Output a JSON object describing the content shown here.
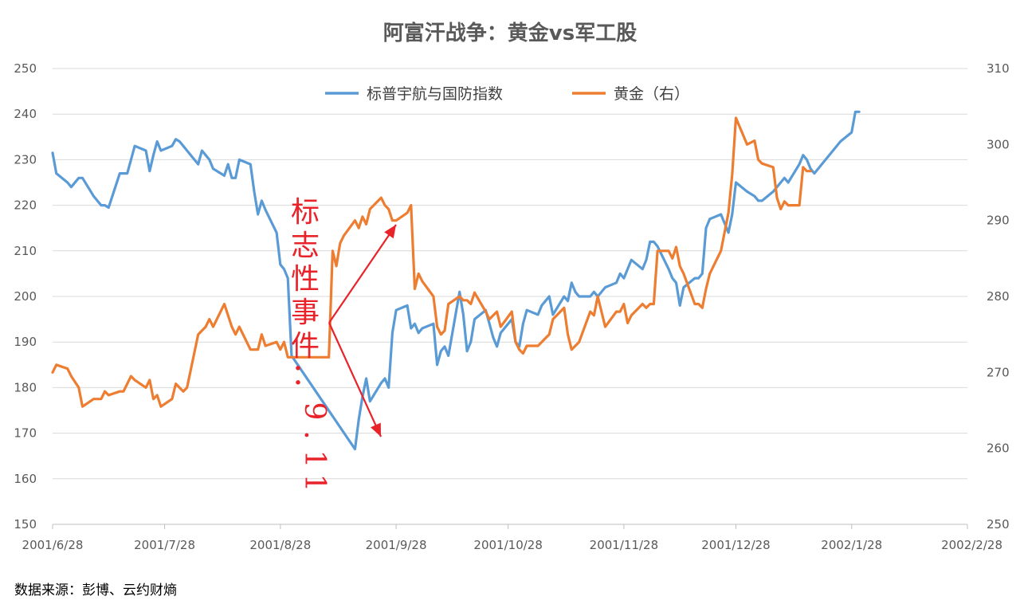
{
  "chart_data": {
    "type": "line",
    "title": "阿富汗战争：黄金vs军工股",
    "legend_position": "top-center",
    "grid": true,
    "x_tick_labels": [
      "2001/6/28",
      "2001/7/28",
      "2001/8/28",
      "2001/9/28",
      "2001/10/28",
      "2001/11/28",
      "2001/12/28",
      "2002/1/28",
      "2002/2/28"
    ],
    "y_left": {
      "min": 150,
      "max": 250,
      "ticks": [
        150,
        160,
        170,
        180,
        190,
        200,
        210,
        220,
        230,
        240,
        250
      ]
    },
    "y_right": {
      "min": 250,
      "max": 310,
      "ticks": [
        250,
        260,
        270,
        280,
        290,
        300,
        310
      ]
    },
    "series": [
      {
        "name": "标普宇航与国防指数",
        "axis": "left",
        "color": "#5b9bd5",
        "values": [
          [
            "2001-06-28",
            231.5
          ],
          [
            "2001-06-29",
            227
          ],
          [
            "2001-07-02",
            225
          ],
          [
            "2001-07-03",
            224
          ],
          [
            "2001-07-05",
            226
          ],
          [
            "2001-07-06",
            226
          ],
          [
            "2001-07-09",
            222
          ],
          [
            "2001-07-10",
            221
          ],
          [
            "2001-07-11",
            220
          ],
          [
            "2001-07-12",
            220
          ],
          [
            "2001-07-13",
            219.5
          ],
          [
            "2001-07-16",
            227
          ],
          [
            "2001-07-17",
            227
          ],
          [
            "2001-07-18",
            227
          ],
          [
            "2001-07-19",
            230
          ],
          [
            "2001-07-20",
            233
          ],
          [
            "2001-07-23",
            232
          ],
          [
            "2001-07-24",
            227.5
          ],
          [
            "2001-07-25",
            231
          ],
          [
            "2001-07-26",
            234
          ],
          [
            "2001-07-27",
            232
          ],
          [
            "2001-07-30",
            233
          ],
          [
            "2001-07-31",
            234.5
          ],
          [
            "2001-08-01",
            234
          ],
          [
            "2001-08-02",
            233
          ],
          [
            "2001-08-03",
            232
          ],
          [
            "2001-08-06",
            229
          ],
          [
            "2001-08-07",
            232
          ],
          [
            "2001-08-08",
            231
          ],
          [
            "2001-08-09",
            230
          ],
          [
            "2001-08-10",
            228
          ],
          [
            "2001-08-13",
            226.5
          ],
          [
            "2001-08-14",
            229
          ],
          [
            "2001-08-15",
            226
          ],
          [
            "2001-08-16",
            226
          ],
          [
            "2001-08-17",
            230
          ],
          [
            "2001-08-20",
            229
          ],
          [
            "2001-08-21",
            223
          ],
          [
            "2001-08-22",
            218
          ],
          [
            "2001-08-23",
            221
          ],
          [
            "2001-08-24",
            219
          ],
          [
            "2001-08-27",
            214
          ],
          [
            "2001-08-28",
            207
          ],
          [
            "2001-08-29",
            206
          ],
          [
            "2001-08-30",
            204
          ],
          [
            "2001-08-31",
            187
          ],
          [
            "2001-09-17",
            166.5
          ],
          [
            "2001-09-18",
            173
          ],
          [
            "2001-09-19",
            178
          ],
          [
            "2001-09-20",
            182
          ],
          [
            "2001-09-21",
            177
          ],
          [
            "2001-09-24",
            181
          ],
          [
            "2001-09-25",
            182
          ],
          [
            "2001-09-26",
            180
          ],
          [
            "2001-09-27",
            192
          ],
          [
            "2001-09-28",
            197
          ],
          [
            "2001-10-01",
            198
          ],
          [
            "2001-10-02",
            193
          ],
          [
            "2001-10-03",
            194
          ],
          [
            "2001-10-04",
            192
          ],
          [
            "2001-10-05",
            193
          ],
          [
            "2001-10-08",
            194
          ],
          [
            "2001-10-09",
            185
          ],
          [
            "2001-10-10",
            188
          ],
          [
            "2001-10-11",
            189
          ],
          [
            "2001-10-12",
            187
          ],
          [
            "2001-10-15",
            201
          ],
          [
            "2001-10-16",
            196
          ],
          [
            "2001-10-17",
            188
          ],
          [
            "2001-10-18",
            190
          ],
          [
            "2001-10-19",
            195
          ],
          [
            "2001-10-22",
            197
          ],
          [
            "2001-10-23",
            194
          ],
          [
            "2001-10-24",
            191
          ],
          [
            "2001-10-25",
            189
          ],
          [
            "2001-10-26",
            192
          ],
          [
            "2001-10-29",
            195
          ],
          [
            "2001-10-30",
            190
          ],
          [
            "2001-10-31",
            189
          ],
          [
            "2001-11-01",
            194
          ],
          [
            "2001-11-02",
            197
          ],
          [
            "2001-11-05",
            196
          ],
          [
            "2001-11-06",
            198
          ],
          [
            "2001-11-07",
            199
          ],
          [
            "2001-11-08",
            200
          ],
          [
            "2001-11-09",
            196
          ],
          [
            "2001-11-12",
            200
          ],
          [
            "2001-11-13",
            199
          ],
          [
            "2001-11-14",
            203
          ],
          [
            "2001-11-15",
            201
          ],
          [
            "2001-11-16",
            200
          ],
          [
            "2001-11-19",
            200
          ],
          [
            "2001-11-20",
            201
          ],
          [
            "2001-11-21",
            200
          ],
          [
            "2001-11-23",
            202
          ],
          [
            "2001-11-26",
            203
          ],
          [
            "2001-11-27",
            205
          ],
          [
            "2001-11-28",
            204
          ],
          [
            "2001-11-29",
            206
          ],
          [
            "2001-11-30",
            208
          ],
          [
            "2001-12-03",
            206
          ],
          [
            "2001-12-04",
            208
          ],
          [
            "2001-12-05",
            212
          ],
          [
            "2001-12-06",
            212
          ],
          [
            "2001-12-07",
            211
          ],
          [
            "2001-12-10",
            206
          ],
          [
            "2001-12-11",
            204
          ],
          [
            "2001-12-12",
            203
          ],
          [
            "2001-12-13",
            198
          ],
          [
            "2001-12-14",
            202
          ],
          [
            "2001-12-17",
            204
          ],
          [
            "2001-12-18",
            204
          ],
          [
            "2001-12-19",
            205
          ],
          [
            "2001-12-20",
            215
          ],
          [
            "2001-12-21",
            217
          ],
          [
            "2001-12-24",
            218
          ],
          [
            "2001-12-26",
            214
          ],
          [
            "2001-12-27",
            218
          ],
          [
            "2001-12-28",
            225
          ],
          [
            "2001-12-31",
            223
          ],
          [
            "2002-01-02",
            222
          ],
          [
            "2002-01-03",
            221
          ],
          [
            "2002-01-04",
            221
          ],
          [
            "2002-01-07",
            223
          ],
          [
            "2002-01-08",
            224
          ],
          [
            "2002-01-09",
            225
          ],
          [
            "2002-01-10",
            226
          ],
          [
            "2002-01-11",
            225
          ],
          [
            "2002-01-14",
            229
          ],
          [
            "2002-01-15",
            231
          ],
          [
            "2002-01-16",
            230
          ],
          [
            "2002-01-17",
            228
          ],
          [
            "2002-01-18",
            227
          ],
          [
            "2002-01-22",
            231
          ],
          [
            "2002-01-23",
            232
          ],
          [
            "2002-01-24",
            233
          ],
          [
            "2002-01-25",
            234
          ],
          [
            "2002-01-28",
            236
          ],
          [
            "2002-01-29",
            240.5
          ],
          [
            "2002-01-30",
            240.5
          ]
        ]
      },
      {
        "name": "黄金（右）",
        "axis": "right",
        "color": "#ed7d31",
        "values": [
          [
            "2001-06-28",
            270
          ],
          [
            "2001-06-29",
            271
          ],
          [
            "2001-07-02",
            270.5
          ],
          [
            "2001-07-03",
            269.5
          ],
          [
            "2001-07-05",
            268
          ],
          [
            "2001-07-06",
            265.5
          ],
          [
            "2001-07-09",
            266.5
          ],
          [
            "2001-07-10",
            266.5
          ],
          [
            "2001-07-11",
            266.5
          ],
          [
            "2001-07-12",
            267.5
          ],
          [
            "2001-07-13",
            267
          ],
          [
            "2001-07-16",
            267.5
          ],
          [
            "2001-07-17",
            267.5
          ],
          [
            "2001-07-18",
            268.5
          ],
          [
            "2001-07-19",
            269.5
          ],
          [
            "2001-07-20",
            269
          ],
          [
            "2001-07-23",
            268
          ],
          [
            "2001-07-24",
            269
          ],
          [
            "2001-07-25",
            266.5
          ],
          [
            "2001-07-26",
            267
          ],
          [
            "2001-07-27",
            265.5
          ],
          [
            "2001-07-30",
            266.5
          ],
          [
            "2001-07-31",
            268.5
          ],
          [
            "2001-08-01",
            268
          ],
          [
            "2001-08-02",
            267.5
          ],
          [
            "2001-08-03",
            268
          ],
          [
            "2001-08-06",
            275
          ],
          [
            "2001-08-07",
            275.5
          ],
          [
            "2001-08-08",
            276
          ],
          [
            "2001-08-09",
            277
          ],
          [
            "2001-08-10",
            276
          ],
          [
            "2001-08-13",
            279
          ],
          [
            "2001-08-14",
            277.5
          ],
          [
            "2001-08-15",
            276
          ],
          [
            "2001-08-16",
            275
          ],
          [
            "2001-08-17",
            276
          ],
          [
            "2001-08-20",
            273
          ],
          [
            "2001-08-21",
            273
          ],
          [
            "2001-08-22",
            273
          ],
          [
            "2001-08-23",
            275
          ],
          [
            "2001-08-24",
            273.5
          ],
          [
            "2001-08-27",
            274
          ],
          [
            "2001-08-28",
            273
          ],
          [
            "2001-08-29",
            274
          ],
          [
            "2001-08-30",
            272
          ],
          [
            "2001-08-31",
            272
          ],
          [
            "2001-09-10",
            272
          ],
          [
            "2001-09-11",
            286
          ],
          [
            "2001-09-12",
            284
          ],
          [
            "2001-09-13",
            287
          ],
          [
            "2001-09-14",
            288
          ],
          [
            "2001-09-17",
            290
          ],
          [
            "2001-09-18",
            289
          ],
          [
            "2001-09-19",
            290.5
          ],
          [
            "2001-09-20",
            289.5
          ],
          [
            "2001-09-21",
            291.5
          ],
          [
            "2001-09-24",
            293
          ],
          [
            "2001-09-25",
            292
          ],
          [
            "2001-09-26",
            291.5
          ],
          [
            "2001-09-27",
            290
          ],
          [
            "2001-09-28",
            290
          ],
          [
            "2001-10-01",
            291
          ],
          [
            "2001-10-02",
            292
          ],
          [
            "2001-10-03",
            281
          ],
          [
            "2001-10-04",
            283
          ],
          [
            "2001-10-05",
            282
          ],
          [
            "2001-10-08",
            280
          ],
          [
            "2001-10-09",
            276
          ],
          [
            "2001-10-10",
            275
          ],
          [
            "2001-10-11",
            275.5
          ],
          [
            "2001-10-12",
            279
          ],
          [
            "2001-10-15",
            280
          ],
          [
            "2001-10-16",
            279.5
          ],
          [
            "2001-10-17",
            279.5
          ],
          [
            "2001-10-18",
            279
          ],
          [
            "2001-10-19",
            280.5
          ],
          [
            "2001-10-22",
            278
          ],
          [
            "2001-10-23",
            277
          ],
          [
            "2001-10-24",
            277.5
          ],
          [
            "2001-10-25",
            278
          ],
          [
            "2001-10-26",
            276
          ],
          [
            "2001-10-29",
            278
          ],
          [
            "2001-10-30",
            274
          ],
          [
            "2001-10-31",
            273
          ],
          [
            "2001-11-01",
            272.5
          ],
          [
            "2001-11-02",
            273.5
          ],
          [
            "2001-11-05",
            273.5
          ],
          [
            "2001-11-06",
            274
          ],
          [
            "2001-11-07",
            274.5
          ],
          [
            "2001-11-08",
            275
          ],
          [
            "2001-11-09",
            277
          ],
          [
            "2001-11-12",
            278.5
          ],
          [
            "2001-11-13",
            275
          ],
          [
            "2001-11-14",
            273
          ],
          [
            "2001-11-15",
            273.5
          ],
          [
            "2001-11-16",
            274
          ],
          [
            "2001-11-19",
            278
          ],
          [
            "2001-11-20",
            277.5
          ],
          [
            "2001-11-21",
            280
          ],
          [
            "2001-11-23",
            276
          ],
          [
            "2001-11-26",
            278
          ],
          [
            "2001-11-27",
            278
          ],
          [
            "2001-11-28",
            279
          ],
          [
            "2001-11-29",
            276.5
          ],
          [
            "2001-11-30",
            277.5
          ],
          [
            "2001-12-03",
            279
          ],
          [
            "2001-12-04",
            278.5
          ],
          [
            "2001-12-05",
            279
          ],
          [
            "2001-12-06",
            279
          ],
          [
            "2001-12-07",
            286
          ],
          [
            "2001-12-10",
            286
          ],
          [
            "2001-12-11",
            285
          ],
          [
            "2001-12-12",
            286.5
          ],
          [
            "2001-12-13",
            284
          ],
          [
            "2001-12-14",
            283
          ],
          [
            "2001-12-17",
            279
          ],
          [
            "2001-12-18",
            279
          ],
          [
            "2001-12-19",
            278.5
          ],
          [
            "2001-12-20",
            281
          ],
          [
            "2001-12-21",
            283
          ],
          [
            "2001-12-24",
            286
          ],
          [
            "2001-12-26",
            291
          ],
          [
            "2001-12-27",
            296
          ],
          [
            "2001-12-28",
            303.5
          ],
          [
            "2001-12-31",
            300
          ],
          [
            "2002-01-02",
            300.5
          ],
          [
            "2002-01-03",
            298
          ],
          [
            "2002-01-04",
            297.5
          ],
          [
            "2002-01-07",
            297
          ],
          [
            "2002-01-08",
            293
          ],
          [
            "2002-01-09",
            291.5
          ],
          [
            "2002-01-10",
            292.5
          ],
          [
            "2002-01-11",
            292
          ],
          [
            "2002-01-14",
            292
          ],
          [
            "2002-01-15",
            297
          ],
          [
            "2002-01-16",
            296.5
          ],
          [
            "2002-01-17",
            296.5
          ]
        ]
      }
    ],
    "annotation": {
      "text": "标志性事件：9.11",
      "color": "#e8232a"
    }
  },
  "source_note": "数据来源：彭博、云约财熵"
}
